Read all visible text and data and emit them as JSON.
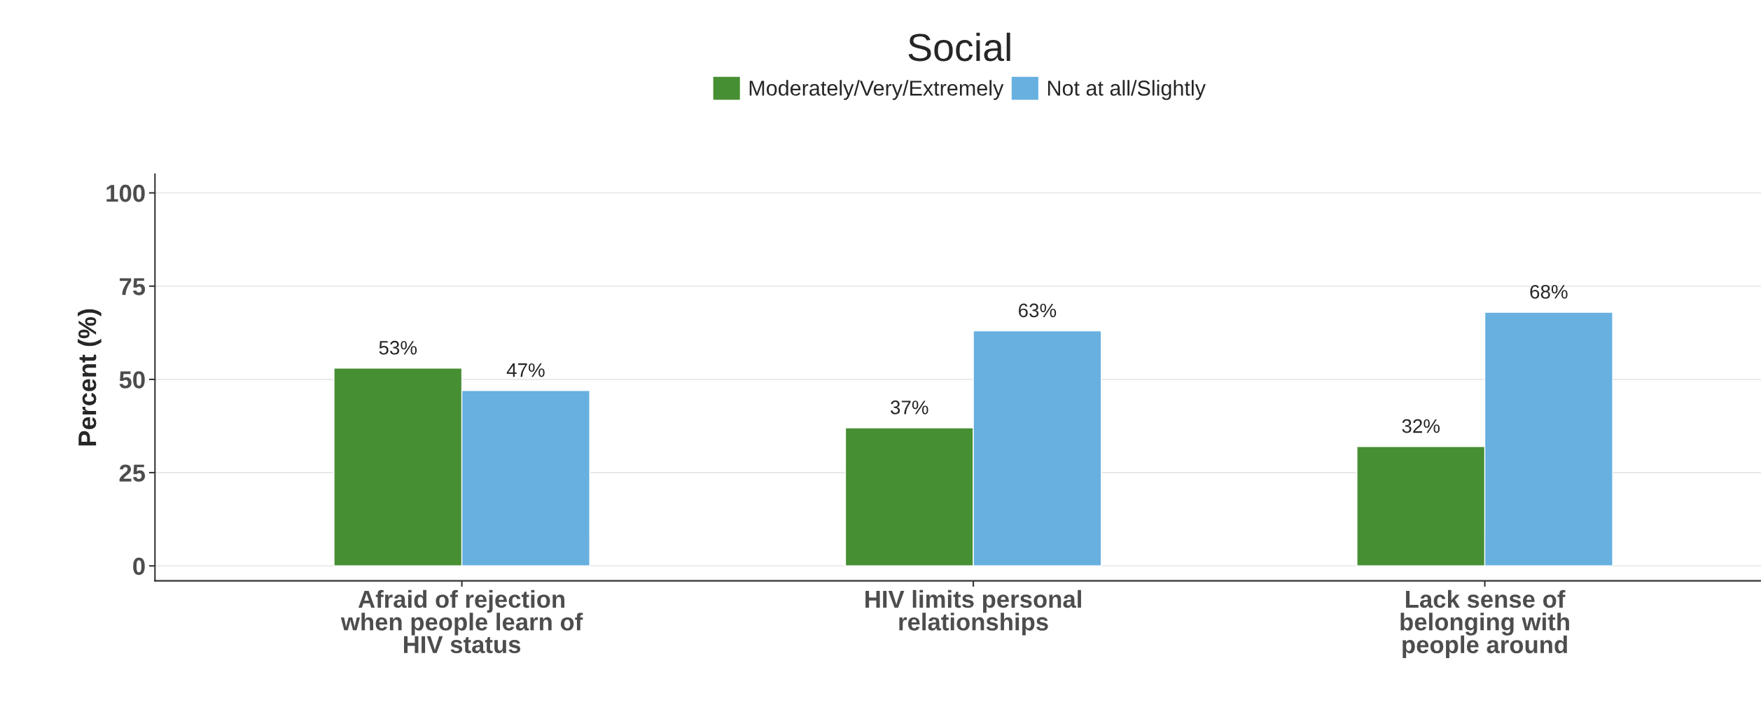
{
  "chart_data": {
    "type": "bar",
    "title": "Social",
    "ylabel": "Percent (%)",
    "categories": [
      "Afraid of rejection\nwhen people learn of\nHIV status",
      "HIV limits personal\nrelationships",
      "Lack sense of\nbelonging with\npeople around"
    ],
    "series": [
      {
        "name": "Moderately/Very/Extremely",
        "color": "#478f33",
        "values": [
          53,
          37,
          32
        ],
        "value_labels": [
          "53%",
          "37%",
          "32%"
        ]
      },
      {
        "name": "Not at all/Slightly",
        "color": "#67b0e0",
        "values": [
          47,
          63,
          68
        ],
        "value_labels": [
          "47%",
          "63%",
          "68%"
        ]
      }
    ],
    "ylim": [
      -4,
      105
    ],
    "yticks": [
      0,
      25,
      50,
      75,
      100
    ],
    "grid": "y",
    "legend": "top"
  }
}
